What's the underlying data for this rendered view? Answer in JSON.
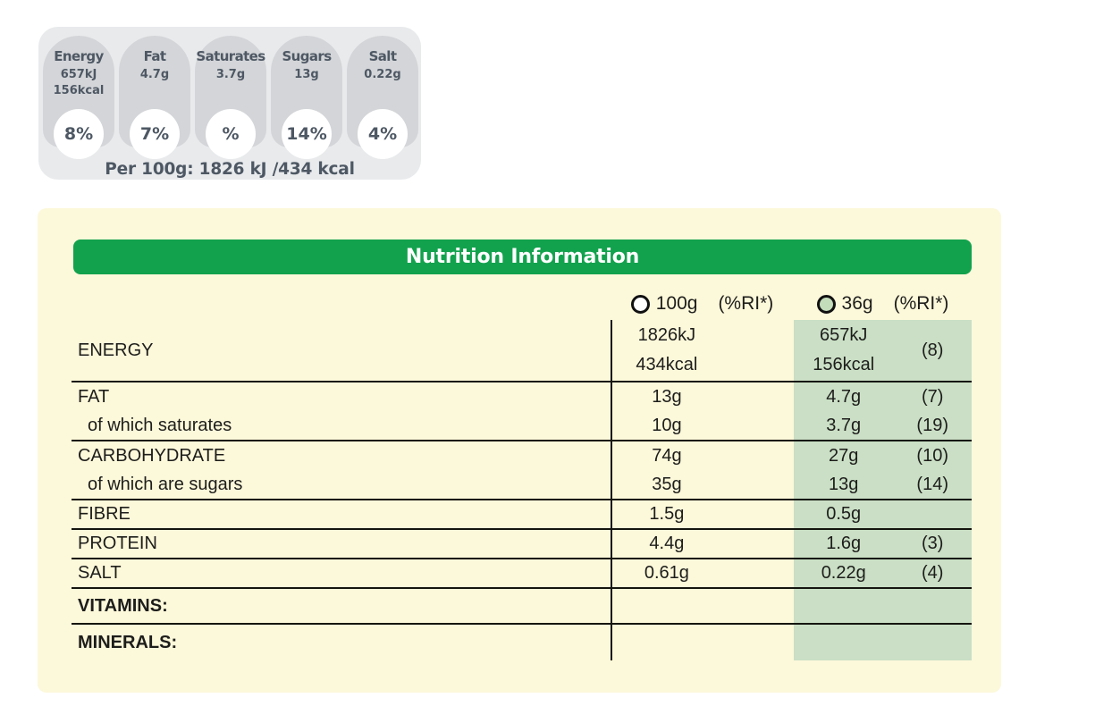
{
  "traffic_light_panel": {
    "badges": [
      {
        "name": "Energy",
        "values": [
          "657kJ",
          "156kcal"
        ],
        "percent": "8%"
      },
      {
        "name": "Fat",
        "values": [
          "4.7g"
        ],
        "percent": "7%"
      },
      {
        "name": "Saturates",
        "values": [
          "3.7g"
        ],
        "percent": "%"
      },
      {
        "name": "Sugars",
        "values": [
          "13g"
        ],
        "percent": "14%"
      },
      {
        "name": "Salt",
        "values": [
          "0.22g"
        ],
        "percent": "4%"
      }
    ],
    "footnote": "Per 100g: 1826 kJ /434 kcal"
  },
  "nutrition_table": {
    "title": "Nutrition Information",
    "columns": {
      "col1": {
        "amount": "100g",
        "ri": "(%RI*)"
      },
      "col2": {
        "amount": "36g",
        "ri": "(%RI*)"
      }
    },
    "rows": [
      {
        "kind": "energy",
        "label": "ENERGY",
        "v100": [
          "1826kJ",
          "434kcal"
        ],
        "v36": [
          "657kJ",
          "156kcal"
        ],
        "ri36": "(8)",
        "group_end": true
      },
      {
        "kind": "normal",
        "label": "FAT",
        "v100": [
          "13g"
        ],
        "v36": [
          "4.7g"
        ],
        "ri36": "(7)",
        "group_end": false
      },
      {
        "kind": "sub",
        "label": "of which saturates",
        "v100": [
          "10g"
        ],
        "v36": [
          "3.7g"
        ],
        "ri36": "(19)",
        "group_end": true
      },
      {
        "kind": "normal",
        "label": "CARBOHYDRATE",
        "v100": [
          "74g"
        ],
        "v36": [
          "27g"
        ],
        "ri36": "(10)",
        "group_end": false
      },
      {
        "kind": "sub",
        "label": "of which are sugars",
        "v100": [
          "35g"
        ],
        "v36": [
          "13g"
        ],
        "ri36": "(14)",
        "group_end": true
      },
      {
        "kind": "normal",
        "label": "FIBRE",
        "v100": [
          "1.5g"
        ],
        "v36": [
          "0.5g"
        ],
        "ri36": "",
        "group_end": true
      },
      {
        "kind": "normal",
        "label": "PROTEIN",
        "v100": [
          "4.4g"
        ],
        "v36": [
          "1.6g"
        ],
        "ri36": "(3)",
        "group_end": true
      },
      {
        "kind": "normal",
        "label": "SALT",
        "v100": [
          "0.61g"
        ],
        "v36": [
          "0.22g"
        ],
        "ri36": "(4)",
        "group_end": true
      },
      {
        "kind": "section",
        "label": "VITAMINS:",
        "v100": [],
        "v36": [],
        "ri36": "",
        "group_end": true
      },
      {
        "kind": "section",
        "label": "MINERALS:",
        "v100": [],
        "v36": [],
        "ri36": "",
        "group_end": false
      }
    ]
  },
  "colors": {
    "header_green": "#12a24d",
    "column_green": "#cadfc5",
    "circle_green": "#c3dcba",
    "panel_cream": "#fcf8da",
    "badge_panel_gray": "#e8eaec",
    "badge_gray": "#d3d5d8",
    "badge_text": "#4e5864",
    "table_text": "#1d1d1b",
    "line_dark": "#15150f"
  }
}
